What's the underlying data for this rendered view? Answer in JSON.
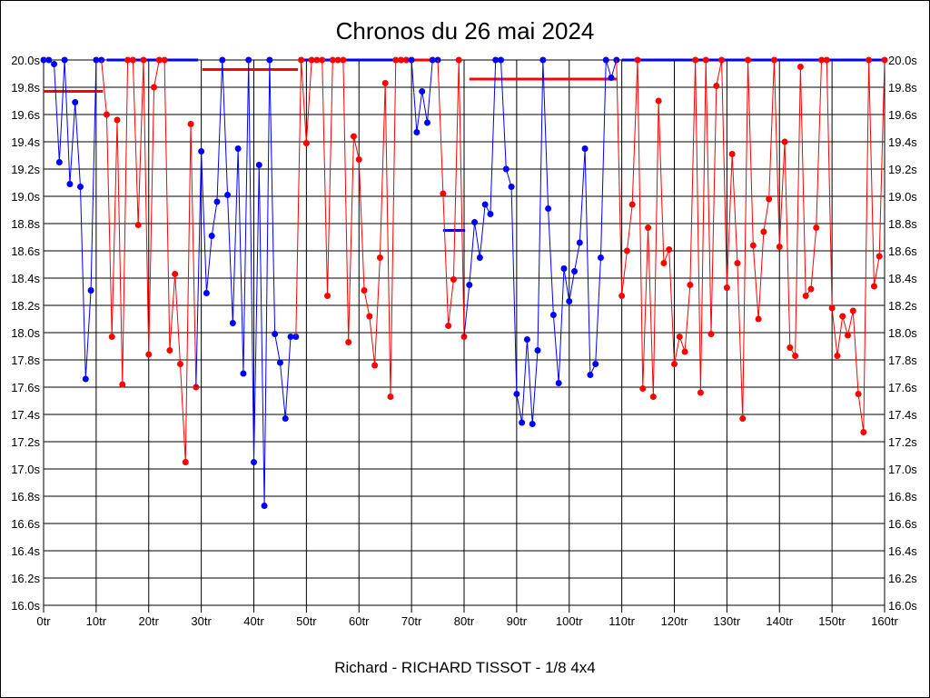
{
  "chart_data": {
    "type": "line",
    "title": "Chronos du 26 mai 2024",
    "footer": "Richard - RICHARD TISSOT - 1/8 4x4",
    "xlabel": "",
    "ylabel": "",
    "xlim": [
      0,
      160
    ],
    "ylim": [
      16.0,
      20.0
    ],
    "x_ticks": [
      "0tr",
      "10tr",
      "20tr",
      "30tr",
      "40tr",
      "50tr",
      "60tr",
      "70tr",
      "80tr",
      "90tr",
      "100tr",
      "110tr",
      "120tr",
      "130tr",
      "140tr",
      "150tr",
      "160tr"
    ],
    "y_ticks": [
      "16.0s",
      "16.2s",
      "16.4s",
      "16.6s",
      "16.8s",
      "17.0s",
      "17.2s",
      "17.4s",
      "17.6s",
      "17.8s",
      "18.0s",
      "18.2s",
      "18.4s",
      "18.6s",
      "18.8s",
      "19.0s",
      "19.2s",
      "19.4s",
      "19.6s",
      "19.8s",
      "20.0s"
    ],
    "grid": true,
    "colors": {
      "blue": "#0000ff",
      "red": "#ff0000"
    },
    "segments": [
      {
        "color": "blue",
        "start": 0,
        "values": [
          20,
          20,
          19.97,
          19.25,
          20,
          19.09,
          19.69,
          19.07,
          17.66,
          18.31,
          20,
          20
        ]
      },
      {
        "color": "red",
        "start": 12,
        "values": [
          19.6,
          17.97,
          19.56,
          17.62,
          20,
          20,
          18.79,
          20,
          17.84,
          19.8,
          20,
          20,
          17.87,
          18.43,
          17.77,
          17.05,
          19.53,
          17.6
        ]
      },
      {
        "color": "blue",
        "start": 30,
        "values": [
          19.33,
          18.29,
          18.71,
          18.96,
          20,
          19.01,
          18.07,
          19.35,
          17.7,
          20,
          17.05,
          19.23,
          16.73,
          20,
          17.99,
          17.78,
          17.37,
          17.97,
          17.97
        ]
      },
      {
        "color": "red",
        "start": 49,
        "values": [
          20,
          19.39,
          20,
          20,
          20,
          18.27,
          20,
          20,
          20,
          17.93,
          19.44,
          19.27,
          18.31,
          18.12,
          17.76,
          18.55,
          19.83,
          17.53,
          20,
          20,
          20
        ]
      },
      {
        "color": "blue",
        "start": 70,
        "values": [
          20,
          19.47,
          19.77,
          19.54,
          20,
          20
        ]
      },
      {
        "color": "red",
        "start": 76,
        "values": [
          19.02,
          18.05,
          18.39,
          20,
          17.97
        ]
      },
      {
        "color": "blue",
        "start": 81,
        "values": [
          18.35,
          18.81,
          18.55,
          18.94,
          18.87,
          20,
          20,
          19.2,
          19.07,
          17.55,
          17.34,
          17.95,
          17.33,
          17.87,
          20,
          18.91,
          18.13,
          17.63,
          18.47,
          18.23,
          18.45,
          18.66,
          19.35,
          17.69,
          17.77,
          18.55,
          20,
          19.87,
          20
        ]
      },
      {
        "color": "red",
        "start": 110,
        "values": [
          18.27,
          18.6,
          18.94,
          20,
          17.59,
          18.77,
          17.53,
          19.7,
          18.51,
          18.61,
          17.77,
          17.97,
          17.86,
          18.35,
          20,
          17.56,
          20,
          17.99,
          19.81,
          20,
          18.33,
          19.31,
          18.51,
          17.37,
          20,
          18.64,
          18.1,
          18.74,
          18.98,
          20,
          18.63,
          19.4,
          17.89,
          17.83,
          19.95,
          18.27,
          18.32,
          18.77,
          20,
          20,
          18.18,
          17.83,
          18.12,
          17.98,
          18.16,
          17.55,
          17.27,
          20,
          18.34,
          18.56,
          20
        ]
      }
    ],
    "reference_lines": [
      {
        "color": "red",
        "value": 19.77,
        "from": 0,
        "to": 11.3
      },
      {
        "color": "blue",
        "value": 20.0,
        "from": 12,
        "to": 29.4
      },
      {
        "color": "red",
        "value": 19.93,
        "from": 30.2,
        "to": 48.4
      },
      {
        "color": "blue",
        "value": 20.0,
        "from": 49.2,
        "to": 67
      },
      {
        "color": "red",
        "value": 20.0,
        "from": 70.3,
        "to": 74.3
      },
      {
        "color": "blue",
        "value": 18.75,
        "from": 76,
        "to": 80.2
      },
      {
        "color": "red",
        "value": 19.86,
        "from": 81,
        "to": 109
      },
      {
        "color": "blue",
        "value": 20.0,
        "from": 110,
        "to": 160
      }
    ]
  }
}
